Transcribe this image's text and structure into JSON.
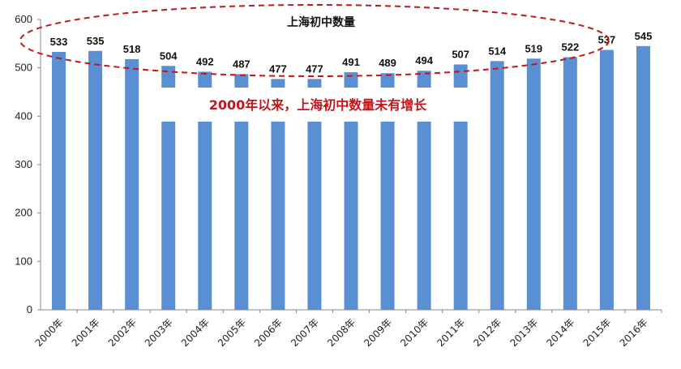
{
  "chart_data": {
    "type": "bar",
    "title": "上海初中数量",
    "annotation": "2000年以来，上海初中数量未有增长",
    "categories": [
      "2000年",
      "2001年",
      "2002年",
      "2003年",
      "2004年",
      "2005年",
      "2006年",
      "2007年",
      "2008年",
      "2009年",
      "2010年",
      "2011年",
      "2012年",
      "2013年",
      "2014年",
      "2015年",
      "2016年"
    ],
    "values": [
      533,
      535,
      518,
      504,
      492,
      487,
      477,
      477,
      491,
      489,
      494,
      507,
      514,
      519,
      522,
      537,
      545
    ],
    "ylim": [
      0,
      600
    ],
    "yticks": [
      0,
      100,
      200,
      300,
      400,
      500,
      600
    ],
    "grid": false,
    "legend": "none",
    "colors": {
      "bar": "#5b8fd3",
      "annotation": "#c0171d",
      "ellipse": "#c0171d"
    }
  }
}
